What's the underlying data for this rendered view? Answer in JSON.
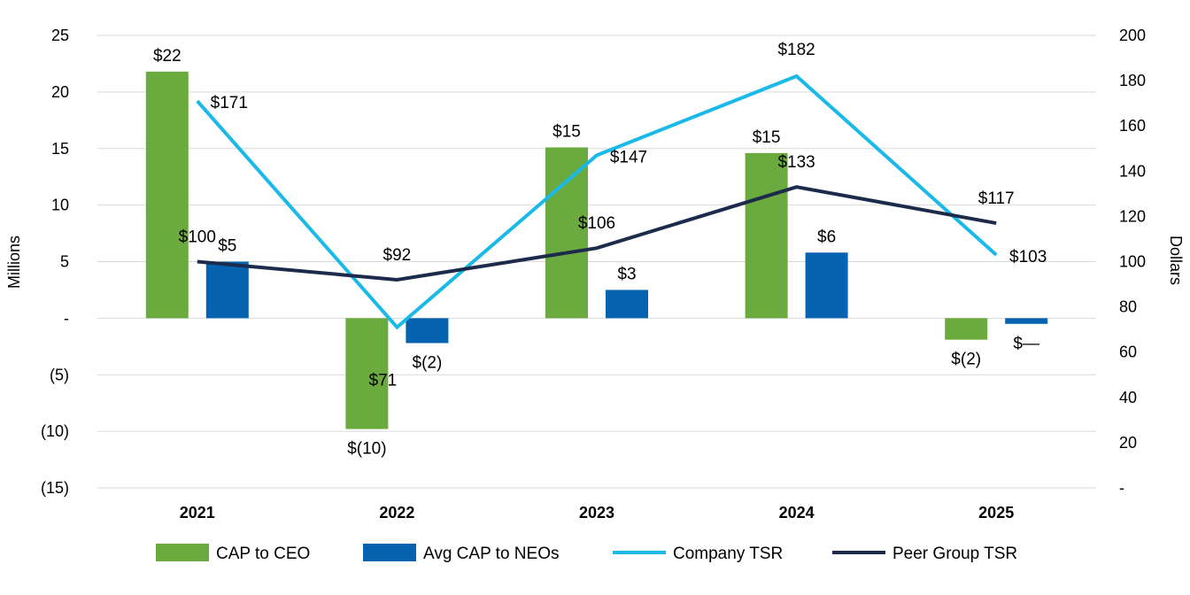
{
  "chart_data": {
    "type": "bar",
    "categories": [
      "2021",
      "2022",
      "2023",
      "2024",
      "2025"
    ],
    "y_left": {
      "label": "Millions",
      "range": [
        -15,
        25
      ],
      "ticks": [
        {
          "value": 25,
          "label": "25"
        },
        {
          "value": 20,
          "label": "20"
        },
        {
          "value": 15,
          "label": "15"
        },
        {
          "value": 10,
          "label": "10"
        },
        {
          "value": 5,
          "label": "5"
        },
        {
          "value": 0,
          "label": "-"
        },
        {
          "value": -5,
          "label": "(5)"
        },
        {
          "value": -10,
          "label": "(10)"
        },
        {
          "value": -15,
          "label": "(15)"
        }
      ]
    },
    "y_right": {
      "label": "Dollars",
      "range": [
        0,
        200
      ],
      "ticks": [
        {
          "value": 200,
          "label": "200"
        },
        {
          "value": 180,
          "label": "180"
        },
        {
          "value": 160,
          "label": "160"
        },
        {
          "value": 140,
          "label": "140"
        },
        {
          "value": 120,
          "label": "120"
        },
        {
          "value": 100,
          "label": "100"
        },
        {
          "value": 80,
          "label": "80"
        },
        {
          "value": 60,
          "label": "60"
        },
        {
          "value": 40,
          "label": "40"
        },
        {
          "value": 20,
          "label": "20"
        },
        {
          "value": 0,
          "label": "-"
        }
      ]
    },
    "grid": true,
    "legend_position": "bottom",
    "series": [
      {
        "name": "CAP to CEO",
        "kind": "bar",
        "axis": "left",
        "color": "#6aaa3f",
        "values": [
          21.8,
          -9.8,
          15.1,
          14.6,
          -1.9
        ],
        "labels": [
          "$22",
          "$(10)",
          "$15",
          "$15",
          "$(2)"
        ]
      },
      {
        "name": "Avg CAP to NEOs",
        "kind": "bar",
        "axis": "left",
        "color": "#0563b2",
        "values": [
          5.0,
          -2.2,
          2.5,
          5.8,
          -0.5
        ],
        "labels": [
          "$5",
          "$(2)",
          "$3",
          "$6",
          "$—"
        ]
      },
      {
        "name": "Company TSR",
        "kind": "line",
        "axis": "right",
        "color": "#1ab9e8",
        "values": [
          171,
          71,
          147,
          182,
          103
        ],
        "labels": [
          "$171",
          "$71",
          "$147",
          "$182",
          "$103"
        ]
      },
      {
        "name": "Peer Group TSR",
        "kind": "line",
        "axis": "right",
        "color": "#1c2b4b",
        "values": [
          100,
          92,
          106,
          133,
          117
        ],
        "labels": [
          "$100",
          "$92",
          "$106",
          "$133",
          "$117"
        ]
      }
    ]
  }
}
